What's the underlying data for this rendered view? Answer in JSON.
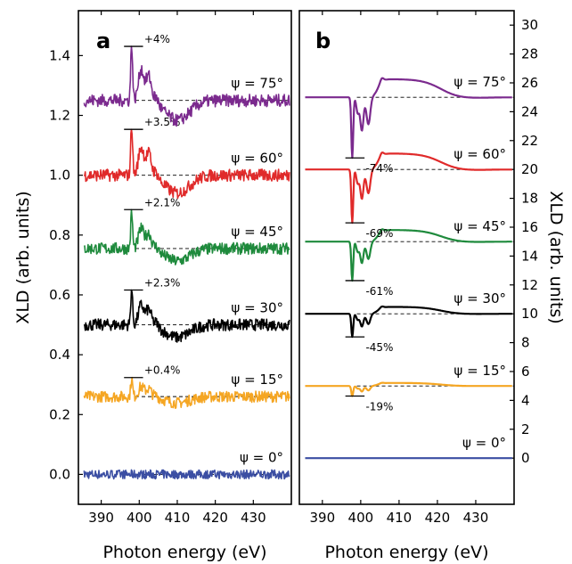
{
  "chart_data": [
    {
      "panel": "a",
      "type": "line",
      "xlabel": "Photon energy (eV)",
      "ylabel": "XLD (arb. units)",
      "xlim": [
        384,
        440
      ],
      "ylim": [
        -0.1,
        1.55
      ],
      "xticks": [
        390,
        400,
        410,
        420,
        430
      ],
      "xtick_labels": [
        "390",
        "400",
        "410",
        "420",
        "430"
      ],
      "yticks": [
        0.0,
        0.2,
        0.4,
        0.6,
        0.8,
        1.0,
        1.2,
        1.4
      ],
      "ytick_labels": [
        "0.0",
        "0.2",
        "0.4",
        "0.6",
        "0.8",
        "1.0",
        "1.2",
        "1.4"
      ],
      "series": [
        {
          "label": "ψ = 0°",
          "color": "#3b4ea3",
          "baseline": 0.0,
          "amp": 0.0,
          "peak_label": ""
        },
        {
          "label": "ψ = 15°",
          "color": "#f5a623",
          "baseline": 0.26,
          "amp": 0.06,
          "peak_label": "+0.4%"
        },
        {
          "label": "ψ = 30°",
          "color": "#000000",
          "baseline": 0.5,
          "amp": 0.12,
          "peak_label": "+2.3%"
        },
        {
          "label": "ψ = 45°",
          "color": "#1e8a3c",
          "baseline": 0.755,
          "amp": 0.12,
          "peak_label": "+2.1%"
        },
        {
          "label": "ψ = 60°",
          "color": "#e02a2a",
          "baseline": 1.0,
          "amp": 0.17,
          "peak_label": "+3.5%"
        },
        {
          "label": "ψ = 75°",
          "color": "#7b2a8e",
          "baseline": 1.25,
          "amp": 0.19,
          "peak_label": "+4%"
        }
      ]
    },
    {
      "panel": "b",
      "type": "line",
      "xlabel": "Photon energy (eV)",
      "ylabel": "XLD (arb. units)",
      "xlim": [
        384,
        440
      ],
      "ylim": [
        -3.2,
        31
      ],
      "xticks": [
        390,
        400,
        410,
        420,
        430
      ],
      "xtick_labels": [
        "390",
        "400",
        "410",
        "420",
        "430"
      ],
      "yticks": [
        0,
        2,
        4,
        6,
        8,
        10,
        12,
        14,
        16,
        18,
        20,
        22,
        24,
        26,
        28,
        30
      ],
      "ytick_labels": [
        "0",
        "2",
        "4",
        "6",
        "8",
        "10",
        "12",
        "14",
        "16",
        "18",
        "20",
        "22",
        "24",
        "26",
        "28",
        "30"
      ],
      "series": [
        {
          "label": "ψ = 0°",
          "color": "#3b4ea3",
          "baseline": 0,
          "amp": 0.0,
          "peak_label": ""
        },
        {
          "label": "ψ = 15°",
          "color": "#f5a623",
          "baseline": 5,
          "amp": 0.7,
          "peak_label": "-19%"
        },
        {
          "label": "ψ = 30°",
          "color": "#000000",
          "baseline": 10,
          "amp": 1.6,
          "peak_label": "-45%"
        },
        {
          "label": "ψ = 45°",
          "color": "#1e8a3c",
          "baseline": 15,
          "amp": 2.7,
          "peak_label": "-61%"
        },
        {
          "label": "ψ = 60°",
          "color": "#e02a2a",
          "baseline": 20,
          "amp": 3.7,
          "peak_label": "-69%"
        },
        {
          "label": "ψ = 75°",
          "color": "#7b2a8e",
          "baseline": 25,
          "amp": 4.2,
          "peak_label": "-74%"
        }
      ]
    }
  ]
}
